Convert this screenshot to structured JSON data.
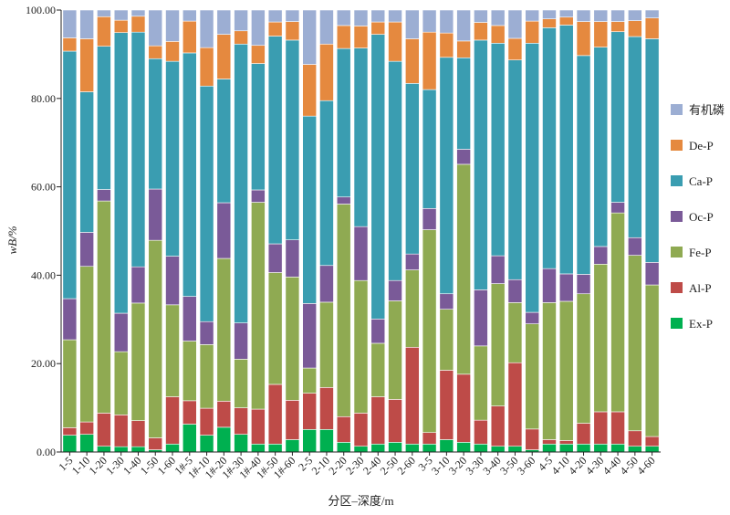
{
  "chart_data": {
    "type": "bar",
    "stacked": true,
    "xlabel": "分区–深度/m",
    "ylabel": "wB/%",
    "ylim": [
      0,
      100
    ],
    "yticks": [
      "0.00",
      "20.00",
      "40.00",
      "60.00",
      "80.00",
      "100.00"
    ],
    "legend_position": "right",
    "categories": [
      "1-5",
      "1-10",
      "1-20",
      "1-30",
      "1-40",
      "1-50",
      "1-60",
      "1#-5",
      "1#-10",
      "1#-20",
      "1#-30",
      "1#-40",
      "1#-50",
      "1#-60",
      "2-5",
      "2-10",
      "2-20",
      "2-30",
      "2-40",
      "2-50",
      "2-60",
      "3-5",
      "3-10",
      "3-20",
      "3-30",
      "3-40",
      "3-50",
      "3-60",
      "4-5",
      "4-10",
      "4-20",
      "4-30",
      "4-40",
      "4-50",
      "4-60"
    ],
    "series": [
      {
        "name": "Ex-P",
        "color": "#00b050",
        "values": [
          3.8,
          4.0,
          1.3,
          1.2,
          1.2,
          0.5,
          1.8,
          6.3,
          3.8,
          5.6,
          4.0,
          1.8,
          1.8,
          2.8,
          5.1,
          5.1,
          2.2,
          1.3,
          1.8,
          2.2,
          1.8,
          1.8,
          2.8,
          2.2,
          1.8,
          1.3,
          1.3,
          0.5,
          1.8,
          1.8,
          1.8,
          1.8,
          1.8,
          1.3,
          1.3
        ]
      },
      {
        "name": "Al-P",
        "color": "#be4b48",
        "values": [
          1.7,
          2.8,
          7.5,
          7.2,
          5.9,
          2.7,
          10.7,
          5.3,
          6.1,
          5.9,
          6.0,
          7.9,
          13.5,
          8.9,
          8.2,
          9.5,
          5.8,
          7.5,
          10.7,
          9.7,
          21.9,
          2.6,
          15.7,
          15.4,
          5.4,
          9.1,
          18.9,
          4.7,
          1.0,
          0.8,
          4.7,
          7.3,
          7.3,
          3.5,
          2.2
        ]
      },
      {
        "name": "Fe-P",
        "color": "#8faa52",
        "values": [
          19.9,
          35.2,
          48.0,
          14.3,
          26.6,
          44.7,
          20.8,
          13.5,
          14.4,
          32.3,
          11.0,
          46.8,
          25.3,
          27.9,
          5.7,
          19.3,
          48.1,
          30.0,
          12.1,
          22.3,
          17.5,
          45.9,
          13.8,
          47.5,
          16.8,
          27.7,
          13.6,
          23.8,
          31.0,
          31.5,
          29.3,
          33.4,
          45.0,
          39.7,
          34.3
        ]
      },
      {
        "name": "Oc-P",
        "color": "#7a5a98",
        "values": [
          9.3,
          7.7,
          2.6,
          8.7,
          8.2,
          11.6,
          11.0,
          10.1,
          5.2,
          12.6,
          8.2,
          2.8,
          6.5,
          8.4,
          14.6,
          8.3,
          1.6,
          12.2,
          5.5,
          4.6,
          3.6,
          4.8,
          3.5,
          3.4,
          12.7,
          6.3,
          5.2,
          2.6,
          7.7,
          6.2,
          4.4,
          4.0,
          2.4,
          4.0,
          5.1
        ]
      },
      {
        "name": "Ca-P",
        "color": "#3a9db1",
        "values": [
          56.0,
          31.8,
          32.4,
          63.5,
          53.1,
          29.5,
          44.1,
          55.1,
          53.3,
          28.0,
          63.1,
          28.6,
          47.0,
          45.2,
          42.4,
          37.3,
          33.6,
          40.4,
          64.4,
          49.6,
          38.6,
          26.9,
          53.5,
          20.7,
          56.5,
          48.1,
          49.7,
          60.9,
          54.5,
          56.3,
          49.5,
          45.1,
          38.6,
          45.5,
          50.6
        ]
      },
      {
        "name": "De-P",
        "color": "#e5893f",
        "values": [
          3.0,
          12.0,
          6.7,
          2.8,
          3.6,
          2.9,
          4.5,
          7.2,
          8.7,
          10.1,
          3.0,
          4.1,
          3.2,
          4.2,
          11.7,
          12.8,
          5.2,
          5.0,
          2.8,
          8.9,
          10.1,
          13.0,
          5.5,
          3.8,
          4.0,
          4.0,
          4.9,
          5.0,
          2.0,
          1.8,
          7.7,
          5.8,
          2.3,
          3.6,
          4.7
        ]
      },
      {
        "name": "有机磷",
        "color": "#9caed3",
        "values": [
          6.3,
          6.5,
          1.5,
          2.3,
          1.4,
          8.1,
          7.1,
          2.5,
          8.5,
          5.5,
          4.7,
          8.0,
          2.7,
          2.6,
          12.3,
          7.7,
          3.5,
          3.6,
          2.7,
          2.7,
          6.5,
          5.0,
          5.2,
          7.0,
          2.8,
          3.5,
          6.4,
          2.5,
          2.0,
          1.6,
          2.6,
          2.6,
          2.6,
          2.4,
          1.8
        ]
      }
    ]
  }
}
